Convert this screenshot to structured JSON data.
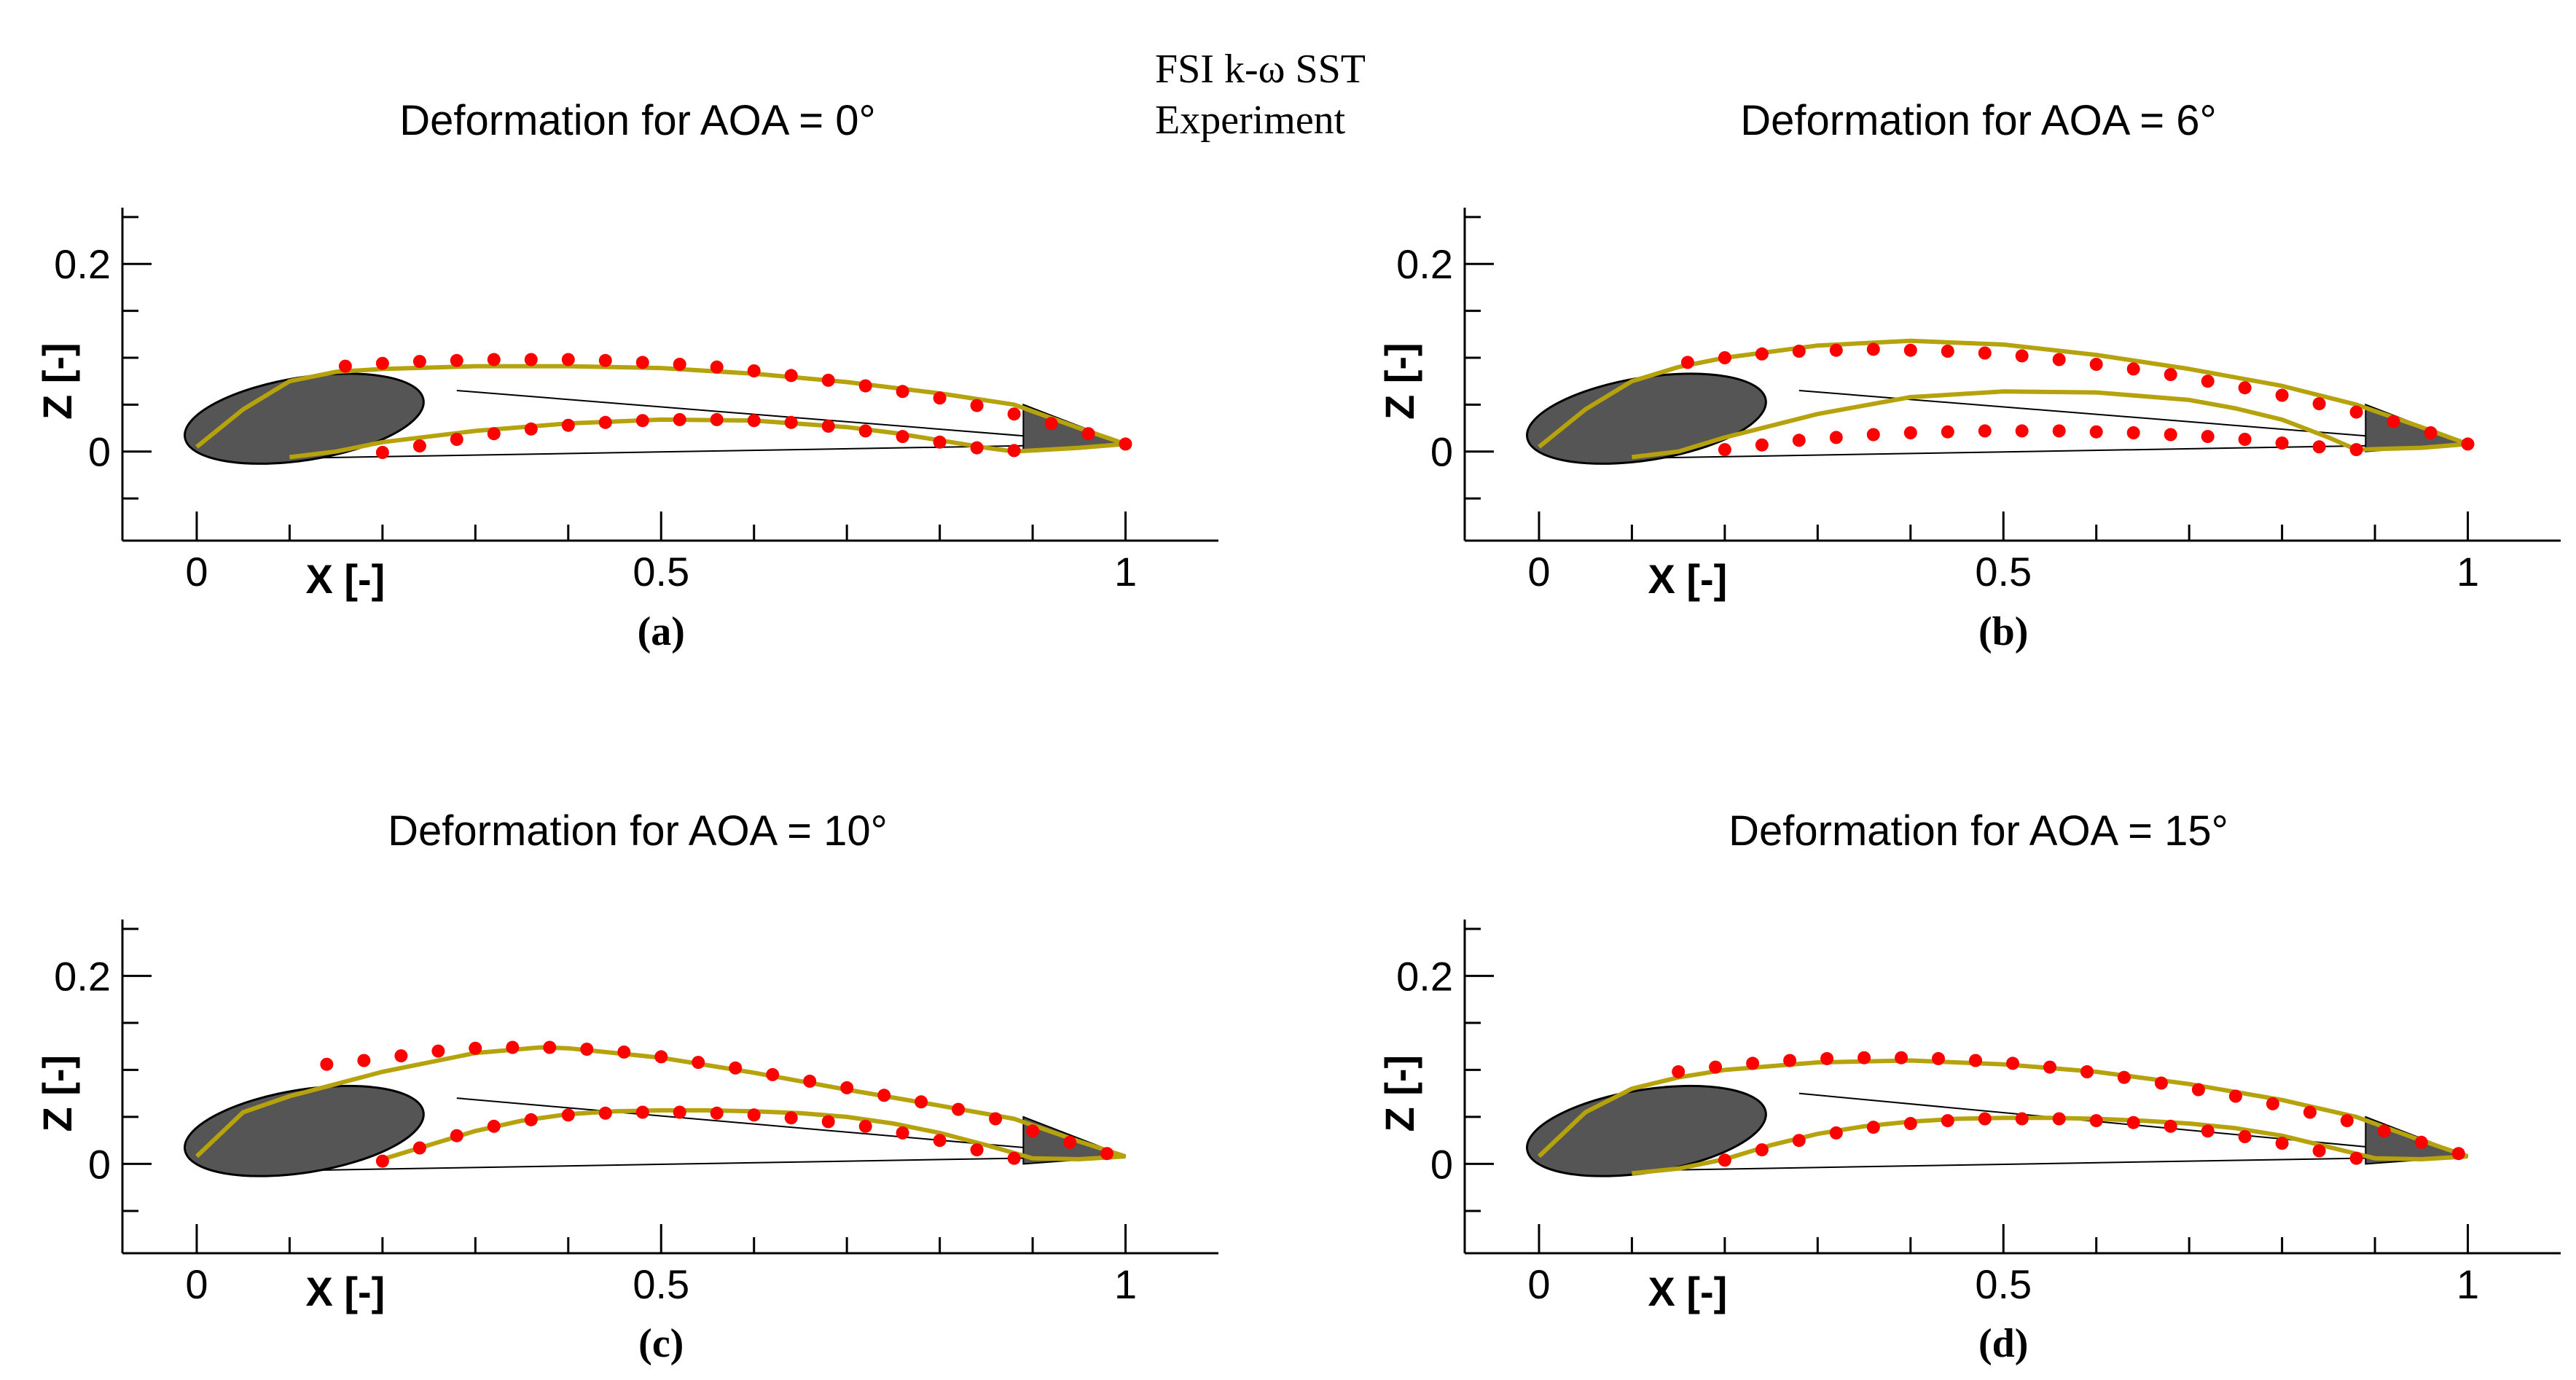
{
  "legend": {
    "entries": [
      {
        "label": "FSI k-ω SST",
        "color": "#b5a20c"
      },
      {
        "label": "Experiment",
        "color": "#ff0000"
      }
    ]
  },
  "chart_data": [
    {
      "type": "line",
      "panel": "a",
      "title": "Deformation for AOA = 0°",
      "caption": "(a)",
      "xlabel": "X [-]",
      "ylabel": "Z [-]",
      "xlim": [
        -0.08,
        1.1
      ],
      "ylim": [
        -0.095,
        0.26
      ],
      "xticks": [
        0,
        0.5,
        1
      ],
      "xtick_labels": [
        "0",
        "0.5",
        "1"
      ],
      "yticks": [
        0,
        0.2
      ],
      "ytick_labels": [
        "0",
        "0.2"
      ],
      "series": [
        {
          "name": "FSI k-ω SST upper",
          "kind": "fsi",
          "x": [
            0.0,
            0.05,
            0.1,
            0.15,
            0.2,
            0.3,
            0.4,
            0.5,
            0.6,
            0.7,
            0.8,
            0.88,
            0.95,
            1.0
          ],
          "y": [
            0.005,
            0.045,
            0.075,
            0.085,
            0.088,
            0.091,
            0.091,
            0.089,
            0.083,
            0.074,
            0.062,
            0.05,
            0.025,
            0.008
          ]
        },
        {
          "name": "FSI k-ω SST lower",
          "kind": "fsi",
          "x": [
            0.1,
            0.15,
            0.2,
            0.3,
            0.4,
            0.5,
            0.6,
            0.7,
            0.75,
            0.8,
            0.85,
            0.88,
            0.95,
            1.0
          ],
          "y": [
            -0.006,
            0.0,
            0.01,
            0.022,
            0.03,
            0.034,
            0.033,
            0.026,
            0.02,
            0.012,
            0.004,
            0.0,
            0.004,
            0.008
          ]
        },
        {
          "name": "Experiment upper",
          "kind": "exp",
          "x": [
            0.16,
            0.2,
            0.24,
            0.28,
            0.32,
            0.36,
            0.4,
            0.44,
            0.48,
            0.52,
            0.56,
            0.6,
            0.64,
            0.68,
            0.72,
            0.76,
            0.8,
            0.84,
            0.88,
            0.92,
            0.96,
            1.0
          ],
          "y": [
            0.091,
            0.094,
            0.096,
            0.097,
            0.098,
            0.098,
            0.098,
            0.097,
            0.095,
            0.093,
            0.09,
            0.086,
            0.081,
            0.076,
            0.07,
            0.064,
            0.057,
            0.049,
            0.04,
            0.03,
            0.019,
            0.008
          ]
        },
        {
          "name": "Experiment lower",
          "kind": "exp",
          "x": [
            0.2,
            0.24,
            0.28,
            0.32,
            0.36,
            0.4,
            0.44,
            0.48,
            0.52,
            0.56,
            0.6,
            0.64,
            0.68,
            0.72,
            0.76,
            0.8,
            0.84,
            0.88
          ],
          "y": [
            -0.001,
            0.006,
            0.013,
            0.019,
            0.024,
            0.028,
            0.031,
            0.033,
            0.034,
            0.034,
            0.033,
            0.031,
            0.027,
            0.022,
            0.016,
            0.01,
            0.004,
            0.001
          ]
        }
      ],
      "background": {
        "chord_upper_z": 0.065,
        "chord_lower_z": -0.008,
        "rigid_le_end_x": 0.25,
        "rigid_te_start_x": 0.89
      }
    },
    {
      "type": "line",
      "panel": "b",
      "title": "Deformation for AOA = 6°",
      "caption": "(b)",
      "xlabel": "X [-]",
      "ylabel": "Z [-]",
      "xlim": [
        -0.08,
        1.1
      ],
      "ylim": [
        -0.095,
        0.26
      ],
      "xticks": [
        0,
        0.5,
        1
      ],
      "xtick_labels": [
        "0",
        "0.5",
        "1"
      ],
      "yticks": [
        0,
        0.2
      ],
      "ytick_labels": [
        "0",
        "0.2"
      ],
      "series": [
        {
          "name": "FSI k-ω SST upper",
          "kind": "fsi",
          "x": [
            0.0,
            0.05,
            0.1,
            0.15,
            0.2,
            0.3,
            0.4,
            0.5,
            0.6,
            0.7,
            0.8,
            0.88,
            0.95,
            1.0
          ],
          "y": [
            0.005,
            0.045,
            0.075,
            0.09,
            0.1,
            0.113,
            0.118,
            0.114,
            0.103,
            0.088,
            0.07,
            0.05,
            0.026,
            0.008
          ]
        },
        {
          "name": "FSI k-ω SST lower",
          "kind": "fsi",
          "x": [
            0.1,
            0.15,
            0.2,
            0.3,
            0.4,
            0.5,
            0.6,
            0.7,
            0.75,
            0.8,
            0.85,
            0.88,
            0.95,
            1.0
          ],
          "y": [
            -0.006,
            0.0,
            0.015,
            0.04,
            0.058,
            0.064,
            0.063,
            0.055,
            0.046,
            0.034,
            0.015,
            0.002,
            0.004,
            0.008
          ]
        },
        {
          "name": "Experiment upper",
          "kind": "exp",
          "x": [
            0.16,
            0.2,
            0.24,
            0.28,
            0.32,
            0.36,
            0.4,
            0.44,
            0.48,
            0.52,
            0.56,
            0.6,
            0.64,
            0.68,
            0.72,
            0.76,
            0.8,
            0.84,
            0.88,
            0.92,
            0.96,
            1.0
          ],
          "y": [
            0.095,
            0.1,
            0.104,
            0.107,
            0.108,
            0.109,
            0.108,
            0.107,
            0.105,
            0.102,
            0.098,
            0.093,
            0.088,
            0.082,
            0.075,
            0.068,
            0.06,
            0.051,
            0.042,
            0.032,
            0.02,
            0.008
          ]
        },
        {
          "name": "Experiment lower",
          "kind": "exp",
          "x": [
            0.2,
            0.24,
            0.28,
            0.32,
            0.36,
            0.4,
            0.44,
            0.48,
            0.52,
            0.56,
            0.6,
            0.64,
            0.68,
            0.72,
            0.76,
            0.8,
            0.84,
            0.88
          ],
          "y": [
            0.002,
            0.007,
            0.012,
            0.015,
            0.018,
            0.02,
            0.021,
            0.022,
            0.022,
            0.022,
            0.021,
            0.02,
            0.018,
            0.016,
            0.013,
            0.009,
            0.005,
            0.002
          ]
        }
      ],
      "background": {
        "chord_upper_z": 0.065,
        "chord_lower_z": -0.008,
        "rigid_le_end_x": 0.25,
        "rigid_te_start_x": 0.89
      }
    },
    {
      "type": "line",
      "panel": "c",
      "title": "Deformation for AOA = 10°",
      "caption": "(c)",
      "xlabel": "X [-]",
      "ylabel": "Z [-]",
      "xlim": [
        -0.08,
        1.1
      ],
      "ylim": [
        -0.095,
        0.26
      ],
      "xticks": [
        0,
        0.5,
        1
      ],
      "xtick_labels": [
        "0",
        "0.5",
        "1"
      ],
      "yticks": [
        0,
        0.2
      ],
      "ytick_labels": [
        "0",
        "0.2"
      ],
      "series": [
        {
          "name": "FSI k-ω SST upper",
          "kind": "fsi",
          "x": [
            0.0,
            0.05,
            0.1,
            0.15,
            0.2,
            0.3,
            0.37,
            0.4,
            0.5,
            0.6,
            0.7,
            0.8,
            0.88,
            0.95,
            1.0
          ],
          "y": [
            0.008,
            0.055,
            0.072,
            0.085,
            0.098,
            0.118,
            0.124,
            0.123,
            0.113,
            0.097,
            0.079,
            0.062,
            0.048,
            0.024,
            0.008
          ]
        },
        {
          "name": "FSI k-ω SST lower",
          "kind": "fsi",
          "x": [
            0.2,
            0.25,
            0.3,
            0.35,
            0.4,
            0.45,
            0.5,
            0.55,
            0.6,
            0.65,
            0.7,
            0.75,
            0.8,
            0.85,
            0.9,
            0.95,
            1.0
          ],
          "y": [
            0.005,
            0.02,
            0.035,
            0.046,
            0.053,
            0.056,
            0.057,
            0.057,
            0.056,
            0.054,
            0.05,
            0.043,
            0.033,
            0.02,
            0.006,
            0.005,
            0.008
          ]
        },
        {
          "name": "Experiment upper",
          "kind": "exp",
          "x": [
            0.14,
            0.18,
            0.22,
            0.26,
            0.3,
            0.34,
            0.38,
            0.42,
            0.46,
            0.5,
            0.54,
            0.58,
            0.62,
            0.66,
            0.7,
            0.74,
            0.78,
            0.82,
            0.86,
            0.9,
            0.94,
            0.98
          ],
          "y": [
            0.106,
            0.11,
            0.115,
            0.12,
            0.123,
            0.124,
            0.124,
            0.122,
            0.119,
            0.114,
            0.108,
            0.102,
            0.095,
            0.088,
            0.081,
            0.073,
            0.066,
            0.058,
            0.048,
            0.035,
            0.023,
            0.011
          ]
        },
        {
          "name": "Experiment lower",
          "kind": "exp",
          "x": [
            0.2,
            0.24,
            0.28,
            0.32,
            0.36,
            0.4,
            0.44,
            0.48,
            0.52,
            0.56,
            0.6,
            0.64,
            0.68,
            0.72,
            0.76,
            0.8,
            0.84,
            0.88
          ],
          "y": [
            0.003,
            0.017,
            0.03,
            0.04,
            0.047,
            0.052,
            0.054,
            0.055,
            0.055,
            0.054,
            0.052,
            0.049,
            0.045,
            0.04,
            0.033,
            0.025,
            0.015,
            0.006
          ]
        }
      ],
      "background": {
        "chord_upper_z": 0.07,
        "chord_lower_z": -0.008,
        "rigid_le_end_x": 0.25,
        "rigid_te_start_x": 0.89
      }
    },
    {
      "type": "line",
      "panel": "d",
      "title": "Deformation for AOA = 15°",
      "caption": "(d)",
      "xlabel": "X [-]",
      "ylabel": "Z [-]",
      "xlim": [
        -0.08,
        1.1
      ],
      "ylim": [
        -0.095,
        0.26
      ],
      "xticks": [
        0,
        0.5,
        1
      ],
      "xtick_labels": [
        "0",
        "0.5",
        "1"
      ],
      "yticks": [
        0,
        0.2
      ],
      "ytick_labels": [
        "0",
        "0.2"
      ],
      "series": [
        {
          "name": "FSI k-ω SST upper",
          "kind": "fsi",
          "x": [
            0.0,
            0.05,
            0.1,
            0.15,
            0.2,
            0.3,
            0.4,
            0.5,
            0.6,
            0.7,
            0.8,
            0.88,
            0.95,
            1.0
          ],
          "y": [
            0.008,
            0.055,
            0.08,
            0.092,
            0.1,
            0.108,
            0.11,
            0.106,
            0.098,
            0.085,
            0.068,
            0.05,
            0.025,
            0.008
          ]
        },
        {
          "name": "FSI k-ω SST lower",
          "kind": "fsi",
          "x": [
            0.1,
            0.15,
            0.2,
            0.25,
            0.3,
            0.35,
            0.4,
            0.45,
            0.5,
            0.55,
            0.6,
            0.65,
            0.7,
            0.75,
            0.8,
            0.85,
            0.9,
            0.95,
            1.0
          ],
          "y": [
            -0.01,
            -0.005,
            0.005,
            0.02,
            0.032,
            0.04,
            0.045,
            0.048,
            0.049,
            0.049,
            0.048,
            0.046,
            0.043,
            0.038,
            0.03,
            0.018,
            0.006,
            0.005,
            0.008
          ]
        },
        {
          "name": "Experiment upper",
          "kind": "exp",
          "x": [
            0.15,
            0.19,
            0.23,
            0.27,
            0.31,
            0.35,
            0.39,
            0.43,
            0.47,
            0.51,
            0.55,
            0.59,
            0.63,
            0.67,
            0.71,
            0.75,
            0.79,
            0.83,
            0.87,
            0.91,
            0.95,
            0.99
          ],
          "y": [
            0.098,
            0.103,
            0.107,
            0.11,
            0.112,
            0.113,
            0.113,
            0.112,
            0.11,
            0.107,
            0.103,
            0.098,
            0.092,
            0.086,
            0.079,
            0.072,
            0.064,
            0.055,
            0.046,
            0.035,
            0.023,
            0.011
          ]
        },
        {
          "name": "Experiment lower",
          "kind": "exp",
          "x": [
            0.2,
            0.24,
            0.28,
            0.32,
            0.36,
            0.4,
            0.44,
            0.48,
            0.52,
            0.56,
            0.6,
            0.64,
            0.68,
            0.72,
            0.76,
            0.8,
            0.84,
            0.88
          ],
          "y": [
            0.004,
            0.015,
            0.025,
            0.033,
            0.039,
            0.043,
            0.046,
            0.048,
            0.048,
            0.048,
            0.046,
            0.044,
            0.04,
            0.035,
            0.029,
            0.022,
            0.014,
            0.006
          ]
        }
      ],
      "background": {
        "chord_upper_z": 0.075,
        "chord_lower_z": -0.008,
        "rigid_le_end_x": 0.25,
        "rigid_te_start_x": 0.89
      }
    }
  ]
}
